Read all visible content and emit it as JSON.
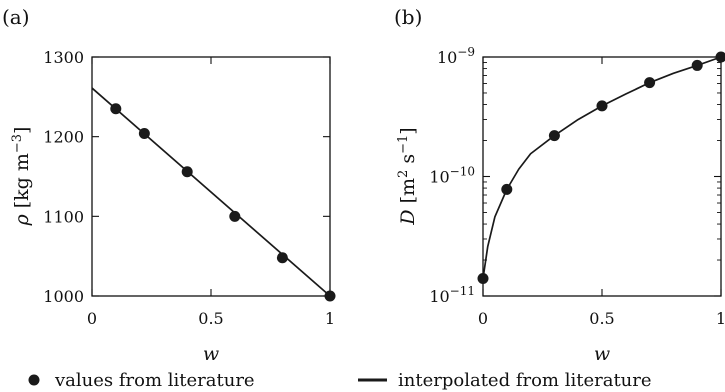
{
  "chart_data": [
    {
      "panel": "(a)",
      "type": "scatter",
      "xlabel": "w",
      "ylabel_symbol": "ρ",
      "ylabel_unit_base": "[kg m",
      "ylabel_unit_exp": "−3",
      "ylabel_unit_close": "]",
      "xlim": [
        0,
        1
      ],
      "ylim": [
        1000,
        1300
      ],
      "yscale": "linear",
      "x_ticks": [
        0,
        0.5,
        1
      ],
      "x_tick_labels": [
        "0",
        "0.5",
        "1"
      ],
      "y_ticks": [
        1000,
        1100,
        1200,
        1300
      ],
      "y_tick_labels": [
        "1000",
        "1100",
        "1200",
        "1300"
      ],
      "grid": false,
      "series": [
        {
          "name": "values from literature",
          "kind": "points",
          "x": [
            0.1,
            0.22,
            0.4,
            0.6,
            0.8,
            1.0
          ],
          "y": [
            1235,
            1204,
            1156,
            1100,
            1048,
            1000
          ]
        },
        {
          "name": "interpolated from literature",
          "kind": "line",
          "x": [
            0.0,
            1.0
          ],
          "y": [
            1261,
            1000
          ]
        }
      ]
    },
    {
      "panel": "(b)",
      "type": "scatter",
      "xlabel": "w",
      "ylabel_symbol": "D",
      "ylabel_unit_base": "[m",
      "ylabel_unit_exp1": "2",
      "ylabel_unit_mid": " s",
      "ylabel_unit_exp2": "−1",
      "ylabel_unit_close": "]",
      "xlim": [
        0,
        1
      ],
      "ylim": [
        1e-11,
        1e-09
      ],
      "yscale": "log",
      "x_ticks": [
        0,
        0.5,
        1
      ],
      "x_tick_labels": [
        "0",
        "0.5",
        "1"
      ],
      "y_ticks": [
        1e-11,
        1e-10,
        1e-09
      ],
      "y_tick_base": "10",
      "y_tick_exps": [
        "−11",
        "−10",
        "−9"
      ],
      "grid": false,
      "series": [
        {
          "name": "values from literature",
          "kind": "points",
          "x": [
            0.0,
            0.1,
            0.3,
            0.5,
            0.7,
            0.9,
            1.0
          ],
          "y": [
            1.4e-11,
            7.8e-11,
            2.2e-10,
            3.9e-10,
            6.1e-10,
            8.5e-10,
            1e-09
          ]
        },
        {
          "name": "interpolated from literature",
          "kind": "line",
          "x": [
            0.0,
            0.02,
            0.05,
            0.1,
            0.15,
            0.2,
            0.3,
            0.4,
            0.5,
            0.6,
            0.7,
            0.8,
            0.9,
            1.0
          ],
          "y": [
            1.4e-11,
            2.6e-11,
            4.6e-11,
            7.8e-11,
            1.15e-10,
            1.55e-10,
            2.2e-10,
            3e-10,
            3.9e-10,
            4.9e-10,
            6.1e-10,
            7.3e-10,
            8.5e-10,
            1e-09
          ]
        }
      ]
    }
  ],
  "legend": {
    "placement": "bottom",
    "points_label": "values from literature",
    "line_label": "interpolated from literature"
  },
  "colors": {
    "marks": "#1a1a1a",
    "axes": "#111111"
  }
}
